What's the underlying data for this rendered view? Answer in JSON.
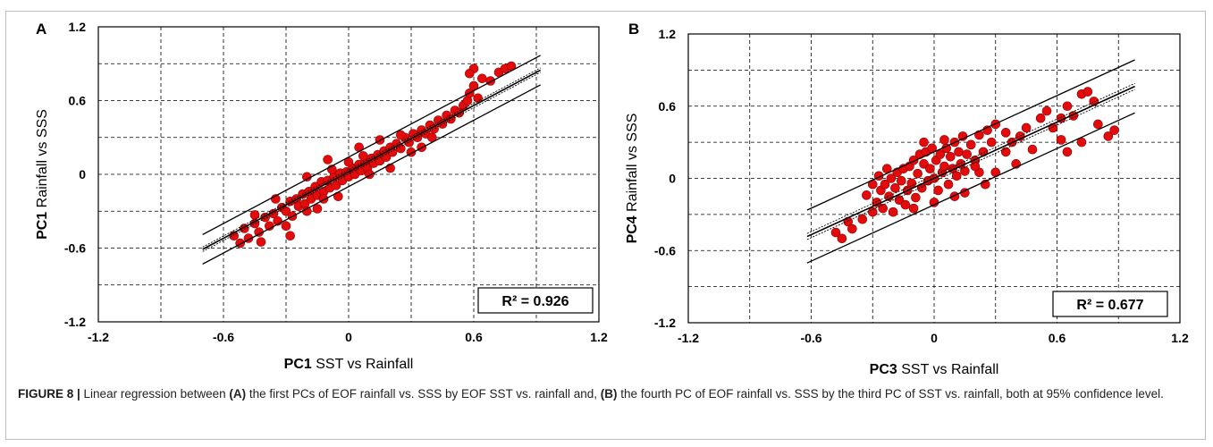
{
  "chart_data": [
    {
      "type": "scatter",
      "panel_label": "A",
      "xlabel_bold": "PC1",
      "xlabel_rest": " SST vs Rainfall",
      "ylabel_bold": "PC1",
      "ylabel_rest": " Rainfall vs SSS",
      "xlim": [
        -1.2,
        1.2
      ],
      "ylim": [
        -1.2,
        1.2
      ],
      "x_ticks": [
        "-1.2",
        "-0.6",
        "0",
        "0.6",
        "1.2"
      ],
      "y_ticks": [
        "1.2",
        "0.6",
        "0",
        "-0.6",
        "-1.2"
      ],
      "grid": true,
      "r2_label": "R² = 0.926",
      "r2": 0.926,
      "regression": {
        "slope": 0.9,
        "intercept": 0.02,
        "x_range": [
          -0.7,
          0.92
        ]
      },
      "prediction_band_offset": 0.12,
      "confidence_band_offset": 0.018,
      "point_color": "#e30b0b",
      "points": [
        [
          -0.55,
          -0.5
        ],
        [
          -0.52,
          -0.56
        ],
        [
          -0.5,
          -0.44
        ],
        [
          -0.48,
          -0.52
        ],
        [
          -0.45,
          -0.4
        ],
        [
          -0.43,
          -0.47
        ],
        [
          -0.4,
          -0.35
        ],
        [
          -0.38,
          -0.42
        ],
        [
          -0.36,
          -0.32
        ],
        [
          -0.34,
          -0.38
        ],
        [
          -0.32,
          -0.27
        ],
        [
          -0.3,
          -0.3
        ],
        [
          -0.28,
          -0.22
        ],
        [
          -0.27,
          -0.34
        ],
        [
          -0.25,
          -0.2
        ],
        [
          -0.24,
          -0.26
        ],
        [
          -0.22,
          -0.16
        ],
        [
          -0.21,
          -0.24
        ],
        [
          -0.19,
          -0.14
        ],
        [
          -0.18,
          -0.2
        ],
        [
          -0.16,
          -0.1
        ],
        [
          -0.15,
          -0.17
        ],
        [
          -0.13,
          -0.06
        ],
        [
          -0.12,
          -0.14
        ],
        [
          -0.1,
          -0.05
        ],
        [
          -0.09,
          -0.11
        ],
        [
          -0.07,
          -0.02
        ],
        [
          -0.06,
          -0.09
        ],
        [
          -0.04,
          0.01
        ],
        [
          -0.03,
          -0.05
        ],
        [
          -0.01,
          0.02
        ],
        [
          0.0,
          -0.02
        ],
        [
          0.02,
          0.05
        ],
        [
          0.03,
          0.0
        ],
        [
          0.05,
          0.08
        ],
        [
          0.06,
          0.03
        ],
        [
          0.08,
          0.1
        ],
        [
          0.09,
          0.05
        ],
        [
          0.11,
          0.13
        ],
        [
          0.12,
          0.09
        ],
        [
          0.14,
          0.16
        ],
        [
          0.15,
          0.11
        ],
        [
          0.17,
          0.19
        ],
        [
          0.18,
          0.14
        ],
        [
          0.2,
          0.22
        ],
        [
          0.21,
          0.18
        ],
        [
          0.23,
          0.25
        ],
        [
          0.25,
          0.21
        ],
        [
          0.27,
          0.3
        ],
        [
          0.29,
          0.26
        ],
        [
          0.31,
          0.33
        ],
        [
          0.33,
          0.3
        ],
        [
          0.35,
          0.36
        ],
        [
          0.37,
          0.33
        ],
        [
          0.39,
          0.4
        ],
        [
          0.41,
          0.37
        ],
        [
          0.43,
          0.44
        ],
        [
          0.45,
          0.41
        ],
        [
          0.47,
          0.48
        ],
        [
          0.49,
          0.45
        ],
        [
          0.51,
          0.52
        ],
        [
          0.53,
          0.5
        ],
        [
          0.55,
          0.56
        ],
        [
          0.57,
          0.6
        ],
        [
          0.58,
          0.66
        ],
        [
          0.6,
          0.72
        ],
        [
          0.62,
          0.62
        ],
        [
          0.64,
          0.78
        ],
        [
          0.6,
          0.86
        ],
        [
          0.58,
          0.82
        ],
        [
          0.72,
          0.83
        ],
        [
          0.75,
          0.86
        ],
        [
          0.78,
          0.88
        ],
        [
          0.68,
          0.76
        ],
        [
          -0.28,
          -0.5
        ],
        [
          -0.42,
          -0.55
        ],
        [
          -0.1,
          0.12
        ],
        [
          0.05,
          0.22
        ],
        [
          -0.2,
          -0.02
        ],
        [
          0.2,
          0.05
        ],
        [
          -0.05,
          -0.18
        ],
        [
          0.35,
          0.22
        ],
        [
          -0.35,
          -0.2
        ],
        [
          0.15,
          0.28
        ],
        [
          -0.15,
          -0.28
        ],
        [
          0.0,
          0.1
        ],
        [
          -0.08,
          0.04
        ],
        [
          0.1,
          0.0
        ],
        [
          -0.3,
          -0.42
        ],
        [
          0.25,
          0.32
        ],
        [
          -0.45,
          -0.33
        ],
        [
          -0.2,
          -0.3
        ],
        [
          0.3,
          0.18
        ],
        [
          0.4,
          0.3
        ],
        [
          -0.12,
          -0.2
        ],
        [
          0.07,
          0.15
        ]
      ]
    },
    {
      "type": "scatter",
      "panel_label": "B",
      "xlabel_bold": "PC3",
      "xlabel_rest": " SST vs Rainfall",
      "ylabel_bold": "PC4",
      "ylabel_rest": " Rainfall vs SSS",
      "xlim": [
        -1.2,
        1.2
      ],
      "ylim": [
        -1.2,
        1.2
      ],
      "x_ticks": [
        "-1.2",
        "-0.6",
        "0",
        "0.6",
        "1.2"
      ],
      "y_ticks": [
        "1.2",
        "0.6",
        "0",
        "-0.6",
        "-1.2"
      ],
      "grid": true,
      "r2_label": "R² = 0.677",
      "r2": 0.677,
      "regression": {
        "slope": 0.78,
        "intercept": 0.0,
        "x_range": [
          -0.62,
          0.98
        ]
      },
      "prediction_band_offset": 0.22,
      "confidence_band_offset": 0.025,
      "point_color": "#e30b0b",
      "points": [
        [
          -0.48,
          -0.45
        ],
        [
          -0.45,
          -0.5
        ],
        [
          -0.42,
          -0.36
        ],
        [
          -0.4,
          -0.42
        ],
        [
          -0.35,
          -0.34
        ],
        [
          -0.3,
          -0.28
        ],
        [
          -0.28,
          -0.2
        ],
        [
          -0.26,
          -0.1
        ],
        [
          -0.25,
          -0.25
        ],
        [
          -0.24,
          -0.05
        ],
        [
          -0.22,
          -0.15
        ],
        [
          -0.21,
          0.0
        ],
        [
          -0.2,
          -0.28
        ],
        [
          -0.19,
          -0.08
        ],
        [
          -0.18,
          0.05
        ],
        [
          -0.17,
          -0.18
        ],
        [
          -0.16,
          -0.02
        ],
        [
          -0.15,
          0.08
        ],
        [
          -0.14,
          -0.22
        ],
        [
          -0.13,
          -0.1
        ],
        [
          -0.12,
          0.1
        ],
        [
          -0.11,
          -0.04
        ],
        [
          -0.1,
          0.15
        ],
        [
          -0.09,
          -0.16
        ],
        [
          -0.08,
          0.04
        ],
        [
          -0.07,
          0.2
        ],
        [
          -0.06,
          -0.08
        ],
        [
          -0.05,
          0.12
        ],
        [
          -0.04,
          0.22
        ],
        [
          -0.03,
          -0.02
        ],
        [
          -0.02,
          0.08
        ],
        [
          -0.01,
          0.25
        ],
        [
          0.0,
          0.0
        ],
        [
          0.01,
          0.15
        ],
        [
          0.02,
          -0.1
        ],
        [
          0.03,
          0.2
        ],
        [
          0.04,
          0.05
        ],
        [
          0.05,
          0.1
        ],
        [
          0.06,
          0.25
        ],
        [
          0.07,
          -0.05
        ],
        [
          0.08,
          0.18
        ],
        [
          0.09,
          0.08
        ],
        [
          0.1,
          0.3
        ],
        [
          0.11,
          0.02
        ],
        [
          0.12,
          0.22
        ],
        [
          0.13,
          0.12
        ],
        [
          0.14,
          0.35
        ],
        [
          0.15,
          0.06
        ],
        [
          0.16,
          0.2
        ],
        [
          0.18,
          0.28
        ],
        [
          0.2,
          0.15
        ],
        [
          0.22,
          0.36
        ],
        [
          0.24,
          0.22
        ],
        [
          0.26,
          0.4
        ],
        [
          0.28,
          0.3
        ],
        [
          0.3,
          0.45
        ],
        [
          0.25,
          -0.05
        ],
        [
          0.22,
          0.05
        ],
        [
          0.35,
          0.22
        ],
        [
          0.38,
          0.3
        ],
        [
          0.4,
          0.12
        ],
        [
          0.42,
          0.35
        ],
        [
          0.48,
          0.24
        ],
        [
          0.52,
          0.5
        ],
        [
          0.55,
          0.56
        ],
        [
          0.58,
          0.42
        ],
        [
          0.62,
          0.5
        ],
        [
          0.65,
          0.6
        ],
        [
          0.68,
          0.52
        ],
        [
          0.72,
          0.7
        ],
        [
          0.75,
          0.72
        ],
        [
          0.78,
          0.64
        ],
        [
          0.62,
          0.32
        ],
        [
          0.65,
          0.22
        ],
        [
          0.72,
          0.3
        ],
        [
          0.85,
          0.35
        ],
        [
          0.88,
          0.4
        ],
        [
          0.8,
          0.45
        ],
        [
          -0.33,
          -0.14
        ],
        [
          -0.3,
          -0.05
        ],
        [
          -0.27,
          0.02
        ],
        [
          -0.23,
          0.08
        ],
        [
          -0.1,
          -0.25
        ],
        [
          0.0,
          -0.2
        ],
        [
          0.05,
          0.32
        ],
        [
          0.15,
          -0.12
        ],
        [
          0.3,
          0.05
        ],
        [
          0.2,
          0.1
        ],
        [
          -0.05,
          0.3
        ],
        [
          0.1,
          -0.15
        ],
        [
          0.35,
          0.38
        ],
        [
          0.45,
          0.42
        ]
      ]
    }
  ],
  "caption": {
    "figure_label": "FIGURE 8 | ",
    "t1": "Linear regression between ",
    "b1": "(A)",
    "t2": " the first PCs of EOF rainfall vs. SSS by EOF SST vs. rainfall and, ",
    "b2": "(B)",
    "t3": " the fourth PC of EOF rainfall vs. SSS by the third PC of SST vs. rainfall, both at 95% confidence level."
  }
}
